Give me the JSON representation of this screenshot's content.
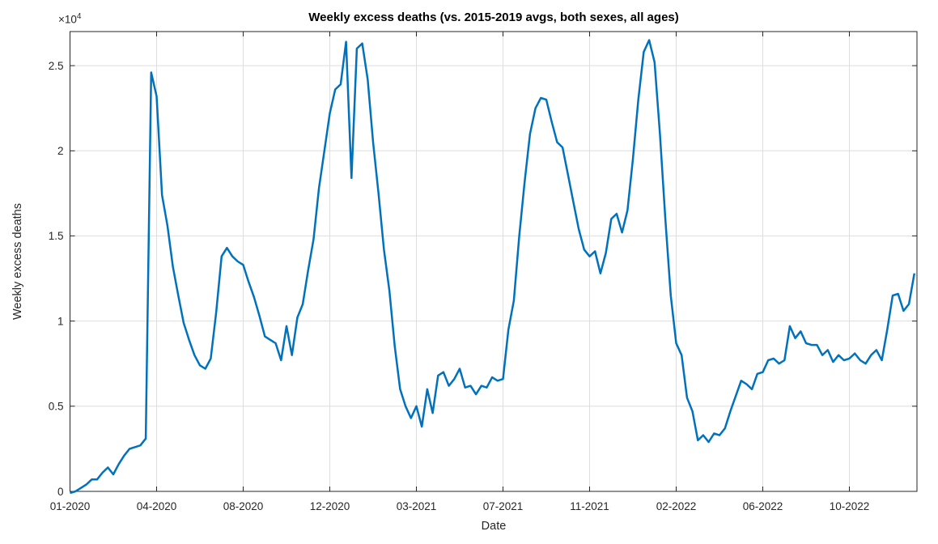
{
  "chart_data": {
    "type": "line",
    "title": "Weekly excess deaths (vs. 2015-2019 avgs, both sexes, all ages)",
    "xlabel": "Date",
    "ylabel": "Weekly excess deaths",
    "y_scale_label": {
      "mantissa": "×10",
      "exponent": "4"
    },
    "legend": null,
    "grid": true,
    "colors": {
      "line": "#0072bd",
      "axis": "#262626",
      "grid": "#dedede",
      "title": "#000000",
      "background": "#ffffff"
    },
    "ylim": [
      0,
      2.7
    ],
    "y_ticks": [
      0,
      0.5,
      1,
      1.5,
      2,
      2.5
    ],
    "y_tick_labels": [
      "0",
      "0.5",
      "1",
      "1.5",
      "2",
      "2.5"
    ],
    "x_unit": "week-index starting 01-2020, one point per week",
    "x_tick_weeks": [
      1,
      17,
      33,
      49,
      65,
      81,
      97,
      113,
      129,
      145
    ],
    "x_tick_labels": [
      "01-2020",
      "04-2020",
      "08-2020",
      "12-2020",
      "03-2021",
      "07-2021",
      "11-2021",
      "02-2022",
      "06-2022",
      "10-2022"
    ],
    "series": [
      {
        "name": "weekly-excess-deaths",
        "units": "deaths × 10^4",
        "values": [
          -0.01,
          0.0,
          0.02,
          0.04,
          0.07,
          0.07,
          0.11,
          0.14,
          0.1,
          0.16,
          0.21,
          0.25,
          0.26,
          0.27,
          0.31,
          2.46,
          2.32,
          1.74,
          1.56,
          1.32,
          1.15,
          0.99,
          0.89,
          0.8,
          0.74,
          0.72,
          0.78,
          1.05,
          1.38,
          1.43,
          1.38,
          1.35,
          1.33,
          1.23,
          1.14,
          1.03,
          0.91,
          0.89,
          0.87,
          0.77,
          0.97,
          0.8,
          1.02,
          1.1,
          1.3,
          1.48,
          1.78,
          2.0,
          2.22,
          2.36,
          2.39,
          2.64,
          1.84,
          2.6,
          2.63,
          2.42,
          2.05,
          1.75,
          1.42,
          1.18,
          0.85,
          0.6,
          0.5,
          0.43,
          0.5,
          0.38,
          0.6,
          0.46,
          0.68,
          0.7,
          0.62,
          0.66,
          0.72,
          0.61,
          0.62,
          0.57,
          0.62,
          0.61,
          0.67,
          0.65,
          0.66,
          0.95,
          1.12,
          1.5,
          1.82,
          2.1,
          2.25,
          2.31,
          2.3,
          2.17,
          2.05,
          2.02,
          1.86,
          1.7,
          1.54,
          1.42,
          1.38,
          1.41,
          1.28,
          1.4,
          1.6,
          1.63,
          1.52,
          1.65,
          1.95,
          2.3,
          2.58,
          2.65,
          2.52,
          2.1,
          1.6,
          1.15,
          0.87,
          0.8,
          0.55,
          0.47,
          0.3,
          0.33,
          0.29,
          0.34,
          0.33,
          0.37,
          0.47,
          0.56,
          0.65,
          0.63,
          0.6,
          0.69,
          0.7,
          0.77,
          0.78,
          0.75,
          0.77,
          0.97,
          0.9,
          0.94,
          0.87,
          0.86,
          0.86,
          0.8,
          0.83,
          0.76,
          0.8,
          0.77,
          0.78,
          0.81,
          0.77,
          0.75,
          0.8,
          0.83,
          0.77,
          0.95,
          1.15,
          1.16,
          1.06,
          1.1,
          1.28
        ]
      }
    ]
  }
}
